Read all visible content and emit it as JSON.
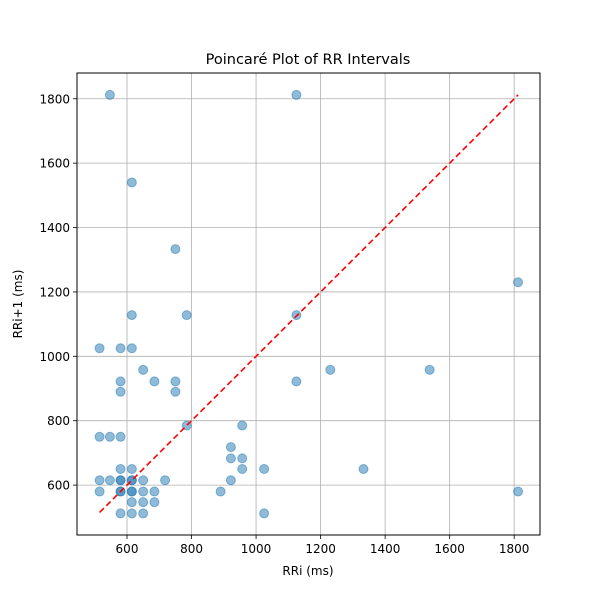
{
  "chart_data": {
    "type": "scatter",
    "title": "Poincaré Plot of RR Intervals",
    "xlabel": "RRi (ms)",
    "ylabel": "RRi+1 (ms)",
    "xlim": [
      445,
      1880
    ],
    "ylim": [
      445,
      1880
    ],
    "xticks": [
      600,
      800,
      1000,
      1200,
      1400,
      1600,
      1800
    ],
    "yticks": [
      600,
      800,
      1000,
      1200,
      1400,
      1600,
      1800
    ],
    "grid": true,
    "identity_line": {
      "from": 515,
      "to": 1812,
      "color": "#ff0000",
      "style": "dashed"
    },
    "marker_color": "#1f77b4",
    "points": [
      [
        547,
        1812
      ],
      [
        1125,
        1812
      ],
      [
        615,
        1540
      ],
      [
        750,
        1333
      ],
      [
        1812,
        1230
      ],
      [
        615,
        1128
      ],
      [
        785,
        1128
      ],
      [
        1125,
        1128
      ],
      [
        515,
        1025
      ],
      [
        580,
        1025
      ],
      [
        615,
        1025
      ],
      [
        650,
        958
      ],
      [
        1230,
        958
      ],
      [
        1538,
        958
      ],
      [
        580,
        922
      ],
      [
        685,
        922
      ],
      [
        750,
        922
      ],
      [
        1125,
        922
      ],
      [
        580,
        890
      ],
      [
        750,
        890
      ],
      [
        785,
        785
      ],
      [
        957,
        785
      ],
      [
        515,
        750
      ],
      [
        547,
        750
      ],
      [
        580,
        750
      ],
      [
        922,
        718
      ],
      [
        922,
        683
      ],
      [
        957,
        683
      ],
      [
        580,
        650
      ],
      [
        615,
        650
      ],
      [
        957,
        650
      ],
      [
        1025,
        650
      ],
      [
        1333,
        650
      ],
      [
        515,
        615
      ],
      [
        547,
        615
      ],
      [
        580,
        615
      ],
      [
        615,
        615
      ],
      [
        650,
        615
      ],
      [
        718,
        615
      ],
      [
        922,
        615
      ],
      [
        515,
        580
      ],
      [
        580,
        580
      ],
      [
        615,
        580
      ],
      [
        650,
        580
      ],
      [
        685,
        580
      ],
      [
        890,
        580
      ],
      [
        1812,
        580
      ],
      [
        615,
        547
      ],
      [
        650,
        547
      ],
      [
        685,
        547
      ],
      [
        580,
        512
      ],
      [
        615,
        512
      ],
      [
        650,
        512
      ],
      [
        1025,
        512
      ],
      [
        580,
        615
      ],
      [
        615,
        580
      ],
      [
        580,
        580
      ],
      [
        615,
        615
      ]
    ]
  }
}
